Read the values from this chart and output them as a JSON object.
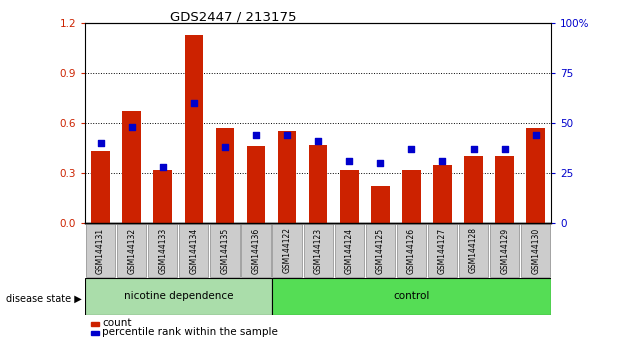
{
  "title": "GDS2447 / 213175",
  "samples": [
    "GSM144131",
    "GSM144132",
    "GSM144133",
    "GSM144134",
    "GSM144135",
    "GSM144136",
    "GSM144122",
    "GSM144123",
    "GSM144124",
    "GSM144125",
    "GSM144126",
    "GSM144127",
    "GSM144128",
    "GSM144129",
    "GSM144130"
  ],
  "count_values": [
    0.43,
    0.67,
    0.32,
    1.13,
    0.57,
    0.46,
    0.55,
    0.47,
    0.32,
    0.22,
    0.32,
    0.35,
    0.4,
    0.4,
    0.57
  ],
  "percentile_values": [
    0.4,
    0.48,
    0.28,
    0.6,
    0.38,
    0.44,
    0.44,
    0.41,
    0.31,
    0.3,
    0.37,
    0.31,
    0.37,
    0.37,
    0.44
  ],
  "group1_label": "nicotine dependence",
  "group2_label": "control",
  "group1_count": 6,
  "group2_count": 9,
  "disease_state_label": "disease state",
  "legend_count": "count",
  "legend_percentile": "percentile rank within the sample",
  "ylim_left": [
    0,
    1.2
  ],
  "ylim_right": [
    0,
    100
  ],
  "yticks_left": [
    0,
    0.3,
    0.6,
    0.9,
    1.2
  ],
  "yticks_right": [
    0,
    25,
    50,
    75,
    100
  ],
  "bar_color": "#cc2200",
  "percentile_color": "#0000cc",
  "group1_bg": "#aaddaa",
  "group2_bg": "#55dd55",
  "tick_bg": "#cccccc",
  "background_color": "#ffffff"
}
